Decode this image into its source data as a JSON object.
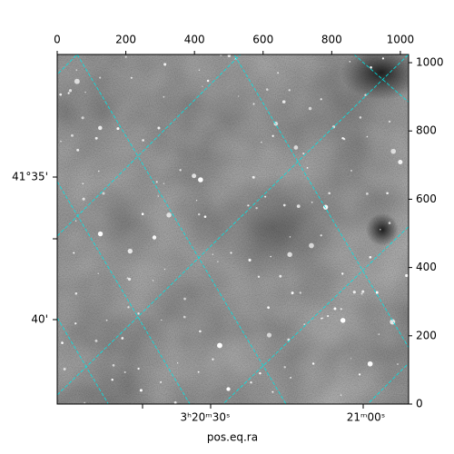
{
  "chart_data": {
    "type": "image",
    "xlim": [
      0,
      1024
    ],
    "ylim": [
      0,
      1024
    ],
    "xticks": [
      0,
      200,
      400,
      600,
      800,
      1000
    ],
    "yticks": [
      0,
      200,
      400,
      600,
      800,
      1000
    ],
    "world_xticks": [
      "3ʰ20ᵐ30ˢ",
      "21ᵐ00ˢ"
    ],
    "world_yticks": [
      "41°35'",
      "40'"
    ],
    "xlabel": "pos.eq.ra"
  }
}
